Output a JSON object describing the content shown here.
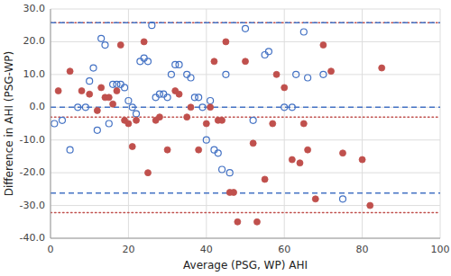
{
  "chart_data": {
    "type": "scatter",
    "xlabel": "Average (PSG, WP) AHI",
    "ylabel": "Difference in AHI (PSG-WP)",
    "xlim": [
      0,
      100
    ],
    "ylim": [
      -40,
      30
    ],
    "xticks": [
      0,
      20,
      40,
      60,
      80,
      100
    ],
    "yticks": [
      {
        "value": -40,
        "label": "-40.0"
      },
      {
        "value": -30,
        "label": "-30.0"
      },
      {
        "value": -20,
        "label": "-20.0"
      },
      {
        "value": -10,
        "label": "-10.0"
      },
      {
        "value": 0,
        "label": "0.0"
      },
      {
        "value": 10,
        "label": "10.0"
      },
      {
        "value": 20,
        "label": "20.0"
      },
      {
        "value": 30,
        "label": "30.0"
      }
    ],
    "grid": true,
    "series": [
      {
        "color": "#4472C4",
        "marker": "circle-open",
        "x": [
          1,
          3,
          5,
          7,
          9,
          10,
          11,
          12,
          13,
          14,
          15,
          16,
          17,
          18,
          19,
          20,
          21,
          22,
          23,
          24,
          25,
          26,
          27,
          28,
          29,
          30,
          31,
          32,
          33,
          35,
          36,
          37,
          38,
          39,
          40,
          41,
          42,
          43,
          44,
          45,
          46,
          50,
          52,
          55,
          56,
          60,
          62,
          63,
          65,
          66,
          70,
          75
        ],
        "values": [
          -5,
          -4,
          -13,
          0,
          0,
          8,
          12,
          -7,
          21,
          19,
          -5,
          7,
          7,
          7,
          6,
          2,
          0,
          -2,
          14,
          15,
          14,
          25,
          3,
          4,
          4,
          3,
          10,
          13,
          13,
          10,
          9,
          3,
          3,
          0,
          -10,
          2,
          -13,
          -14,
          -19,
          10,
          -20,
          24,
          -4,
          16,
          17,
          0,
          0,
          10,
          23,
          9,
          10,
          -28
        ]
      },
      {
        "color": "#C0504D",
        "marker": "circle",
        "x": [
          2,
          5,
          8,
          10,
          12,
          13,
          14,
          15,
          16,
          17,
          18,
          19,
          20,
          21,
          22,
          24,
          25,
          27,
          28,
          30,
          32,
          33,
          35,
          36,
          38,
          40,
          41,
          42,
          43,
          44,
          45,
          46,
          47,
          48,
          50,
          52,
          53,
          55,
          57,
          58,
          60,
          62,
          64,
          65,
          66,
          68,
          70,
          72,
          75,
          80,
          82,
          85
        ],
        "values": [
          5,
          11,
          5,
          4,
          -1,
          6,
          3,
          3,
          1,
          5,
          19,
          -4,
          -5,
          -12,
          -4,
          20,
          -20,
          -4,
          -3,
          -13,
          5,
          4,
          -3,
          0,
          -13,
          -5,
          0,
          14,
          -4,
          -4,
          20,
          -26,
          -26,
          -35,
          14,
          -11,
          -35,
          -22,
          -5,
          10,
          6,
          -16,
          -17,
          -5,
          -13,
          -28,
          19,
          11,
          -14,
          -16,
          -30,
          12
        ]
      }
    ],
    "reference_lines": [
      {
        "value": 25.8,
        "color": "#C0504D",
        "line_style": "dotted"
      },
      {
        "value": -3.0,
        "color": "#C0504D",
        "line_style": "dotted"
      },
      {
        "value": -32.2,
        "color": "#C0504D",
        "line_style": "dotted"
      },
      {
        "value": 25.8,
        "color": "#4472C4",
        "line_style": "dashed"
      },
      {
        "value": 0.0,
        "color": "#4472C4",
        "line_style": "dashed"
      },
      {
        "value": -26.2,
        "color": "#4472C4",
        "line_style": "dashed"
      }
    ]
  }
}
